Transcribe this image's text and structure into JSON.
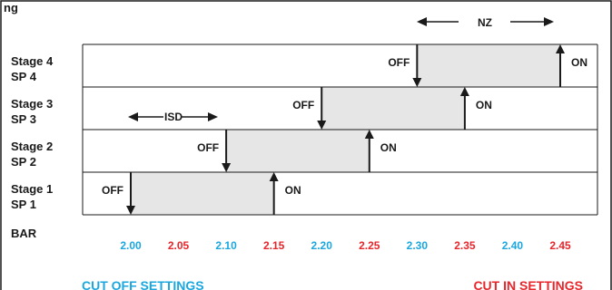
{
  "top_text": "ng",
  "stages": [
    {
      "stage": "Stage 1",
      "sp": "SP 1",
      "off": 2.0,
      "on": 2.15
    },
    {
      "stage": "Stage 2",
      "sp": "SP 2",
      "off": 2.1,
      "on": 2.25
    },
    {
      "stage": "Stage 3",
      "sp": "SP 3",
      "off": 2.2,
      "on": 2.35
    },
    {
      "stage": "Stage 4",
      "sp": "SP 4",
      "off": 2.3,
      "on": 2.45
    }
  ],
  "off_label": "OFF",
  "on_label": "ON",
  "isd_label": "ISD",
  "nz_label": "NZ",
  "bar_label": "BAR",
  "ticks": [
    {
      "value": "2.00",
      "kind": "cutoff"
    },
    {
      "value": "2.05",
      "kind": "cutin"
    },
    {
      "value": "2.10",
      "kind": "cutoff"
    },
    {
      "value": "2.15",
      "kind": "cutin"
    },
    {
      "value": "2.20",
      "kind": "cutoff"
    },
    {
      "value": "2.25",
      "kind": "cutin"
    },
    {
      "value": "2.30",
      "kind": "cutoff"
    },
    {
      "value": "2.35",
      "kind": "cutin"
    },
    {
      "value": "2.40",
      "kind": "cutoff"
    },
    {
      "value": "2.45",
      "kind": "cutin"
    }
  ],
  "footer": {
    "cut_off": "CUT OFF SETTINGS",
    "cut_in": "CUT IN SETTINGS"
  },
  "colors": {
    "cut_off": "#1aa7e0",
    "cut_in": "#e8262c",
    "fill": "#e6e6e6",
    "line": "#1a1a1a"
  }
}
